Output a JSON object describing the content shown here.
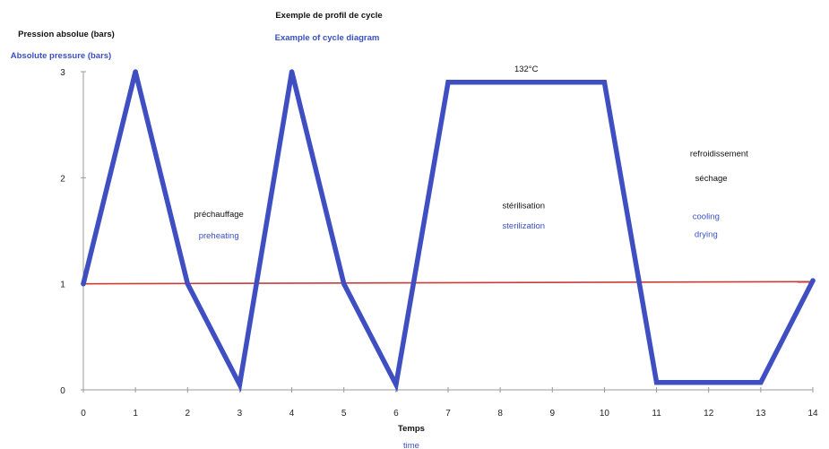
{
  "colors": {
    "series": "#3f4fc1",
    "reference": "#c83c3c",
    "axis": "#999999",
    "english_text": "#3a4fc4",
    "french_text": "#111111"
  },
  "chart_data": {
    "type": "line",
    "title": "Exemple de profil de cycle",
    "subtitle": "Example of cycle diagram",
    "ylabel": "Pression absolue (bars)",
    "ylabel_en": "Absolute pressure (bars)",
    "xlabel": "Temps",
    "xlabel_en": "time",
    "xlim": [
      0,
      14
    ],
    "ylim": [
      0,
      3
    ],
    "x_ticks": [
      0,
      1,
      2,
      3,
      4,
      5,
      6,
      7,
      8,
      9,
      10,
      11,
      12,
      13,
      14
    ],
    "y_ticks": [
      0,
      1,
      2,
      3
    ],
    "grid": false,
    "series": [
      {
        "x": [
          0,
          1,
          2,
          3,
          4,
          5,
          6,
          7,
          10,
          11,
          13,
          14
        ],
        "y": [
          1.0,
          3.0,
          1.0,
          0.05,
          3.0,
          1.0,
          0.05,
          2.9,
          2.9,
          0.07,
          0.07,
          1.03
        ]
      }
    ],
    "reference_line": {
      "y_start": 1.0,
      "y_end": 1.02
    },
    "annotations": [
      {
        "text": "préchauffage",
        "lang": "fr",
        "x": 2.6,
        "y": 1.63
      },
      {
        "text": "preheating",
        "lang": "en",
        "x": 2.6,
        "y": 1.43
      },
      {
        "text": "stérilisation",
        "lang": "fr",
        "x": 8.45,
        "y": 1.71
      },
      {
        "text": "sterilization",
        "lang": "en",
        "x": 8.45,
        "y": 1.52
      },
      {
        "text": "132°C",
        "lang": "fr",
        "x": 8.5,
        "y": 3.0
      },
      {
        "text": "refroidissement",
        "lang": "fr",
        "x": 12.2,
        "y": 2.2
      },
      {
        "text": "séchage",
        "lang": "fr",
        "x": 12.05,
        "y": 1.97
      },
      {
        "text": "cooling",
        "lang": "en",
        "x": 11.95,
        "y": 1.61
      },
      {
        "text": "drying",
        "lang": "en",
        "x": 11.95,
        "y": 1.44
      }
    ]
  }
}
